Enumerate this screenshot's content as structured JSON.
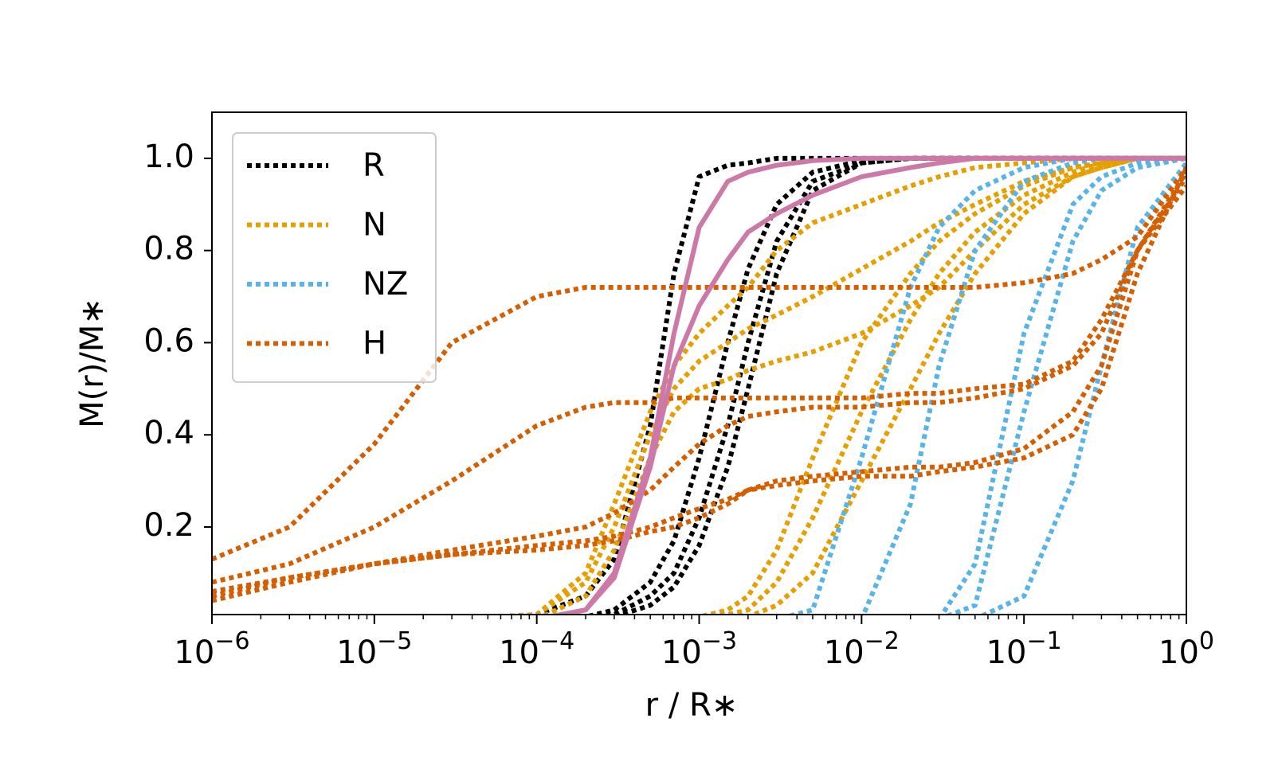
{
  "chart_data": {
    "type": "line",
    "xlabel": "r / R∗",
    "ylabel": "M(r)/M∗",
    "xscale": "log",
    "xlim": [
      1e-06,
      1
    ],
    "ylim": [
      0.01,
      1.1
    ],
    "xticks": [
      {
        "value": 1e-06,
        "label": "10−6"
      },
      {
        "value": 1e-05,
        "label": "10−5"
      },
      {
        "value": 0.0001,
        "label": "10−4"
      },
      {
        "value": 0.001,
        "label": "10−3"
      },
      {
        "value": 0.01,
        "label": "10−2"
      },
      {
        "value": 0.1,
        "label": "10−1"
      },
      {
        "value": 1,
        "label": "100"
      }
    ],
    "yticks": [
      0.2,
      0.4,
      0.6,
      0.8,
      {
        "value": 1,
        "label": "1.0"
      }
    ],
    "grid": false,
    "legend": "upper left",
    "x": [
      1e-06,
      3e-06,
      1e-05,
      3e-05,
      0.0001,
      0.0002,
      0.0003,
      0.0005,
      0.0007,
      0.001,
      0.0015,
      0.002,
      0.003,
      0.005,
      0.01,
      0.02,
      0.03,
      0.05,
      0.1,
      0.2,
      0.3,
      0.5,
      1
    ],
    "series": [
      {
        "name": "R",
        "color": "#000000",
        "style": "dotted",
        "lines": [
          [
            0,
            0,
            0,
            0,
            0.01,
            0.05,
            0.13,
            0.42,
            0.75,
            0.96,
            0.985,
            0.99,
            1,
            1,
            1,
            1,
            1,
            1,
            1,
            1,
            1,
            1,
            1
          ],
          [
            0,
            0,
            0,
            0,
            0,
            0.005,
            0.02,
            0.08,
            0.17,
            0.35,
            0.6,
            0.76,
            0.9,
            0.97,
            0.995,
            1,
            1,
            1,
            1,
            1,
            1,
            1,
            1
          ],
          [
            0,
            0,
            0,
            0,
            0,
            0,
            0.01,
            0.05,
            0.1,
            0.22,
            0.42,
            0.6,
            0.82,
            0.95,
            0.99,
            1,
            1,
            1,
            1,
            1,
            1,
            1,
            1
          ],
          [
            0,
            0,
            0,
            0,
            0,
            0,
            0.005,
            0.03,
            0.07,
            0.16,
            0.33,
            0.5,
            0.75,
            0.93,
            0.99,
            1,
            1,
            1,
            1,
            1,
            1,
            1,
            1
          ]
        ]
      },
      {
        "name": "N",
        "color": "#e69f00",
        "style": "dotted",
        "lines": [
          [
            0,
            0,
            0,
            0,
            0.01,
            0.1,
            0.25,
            0.45,
            0.55,
            0.62,
            0.68,
            0.72,
            0.8,
            0.86,
            0.9,
            0.94,
            0.96,
            0.98,
            0.99,
            1,
            1,
            1,
            1
          ],
          [
            0,
            0,
            0,
            0,
            0.01,
            0.08,
            0.2,
            0.4,
            0.5,
            0.56,
            0.6,
            0.63,
            0.66,
            0.7,
            0.76,
            0.82,
            0.86,
            0.9,
            0.95,
            0.98,
            0.99,
            1,
            1
          ],
          [
            0,
            0,
            0,
            0,
            0,
            0.05,
            0.15,
            0.35,
            0.45,
            0.5,
            0.52,
            0.54,
            0.56,
            0.58,
            0.62,
            0.68,
            0.72,
            0.8,
            0.9,
            0.96,
            0.98,
            1,
            1
          ],
          [
            0,
            0,
            0,
            0,
            0,
            0,
            0,
            0,
            0,
            0.005,
            0.02,
            0.05,
            0.15,
            0.35,
            0.6,
            0.75,
            0.82,
            0.88,
            0.94,
            0.98,
            0.99,
            1,
            1
          ],
          [
            0,
            0,
            0,
            0,
            0,
            0,
            0,
            0,
            0,
            0,
            0.01,
            0.02,
            0.08,
            0.22,
            0.45,
            0.65,
            0.75,
            0.84,
            0.92,
            0.97,
            0.99,
            1,
            1
          ],
          [
            0,
            0,
            0,
            0,
            0,
            0,
            0,
            0,
            0,
            0,
            0,
            0.005,
            0.03,
            0.1,
            0.3,
            0.5,
            0.62,
            0.75,
            0.88,
            0.96,
            0.98,
            1,
            1
          ]
        ]
      },
      {
        "name": "NZ",
        "color": "#56b4e9",
        "style": "dotted",
        "lines": [
          [
            0,
            0,
            0,
            0,
            0,
            0,
            0,
            0,
            0,
            0,
            0,
            0,
            0,
            0.02,
            0.35,
            0.72,
            0.85,
            0.93,
            0.98,
            1,
            1,
            1,
            1
          ],
          [
            0,
            0,
            0,
            0,
            0,
            0,
            0,
            0,
            0,
            0,
            0,
            0,
            0,
            0,
            0,
            0.25,
            0.55,
            0.8,
            0.95,
            0.99,
            1,
            1,
            1
          ],
          [
            0,
            0,
            0,
            0,
            0,
            0,
            0,
            0,
            0,
            0,
            0,
            0,
            0,
            0,
            0,
            0,
            0,
            0.12,
            0.62,
            0.9,
            0.96,
            0.99,
            1
          ],
          [
            0,
            0,
            0,
            0,
            0,
            0,
            0,
            0,
            0,
            0,
            0,
            0,
            0,
            0,
            0,
            0,
            0,
            0.03,
            0.45,
            0.82,
            0.93,
            0.98,
            1
          ],
          [
            0,
            0,
            0,
            0,
            0,
            0,
            0,
            0,
            0,
            0,
            0,
            0,
            0,
            0,
            0,
            0,
            0,
            0,
            0.05,
            0.3,
            0.55,
            0.85,
            0.99
          ]
        ]
      },
      {
        "name": "H",
        "color": "#d55e00",
        "style": "dotted",
        "lines": [
          [
            0.13,
            0.2,
            0.38,
            0.6,
            0.7,
            0.72,
            0.72,
            0.72,
            0.72,
            0.72,
            0.72,
            0.72,
            0.72,
            0.72,
            0.72,
            0.72,
            0.72,
            0.72,
            0.73,
            0.75,
            0.78,
            0.83,
            0.98
          ],
          [
            0.08,
            0.12,
            0.2,
            0.3,
            0.42,
            0.46,
            0.47,
            0.47,
            0.48,
            0.48,
            0.48,
            0.48,
            0.48,
            0.48,
            0.48,
            0.49,
            0.49,
            0.5,
            0.51,
            0.56,
            0.65,
            0.8,
            0.97
          ],
          [
            0.05,
            0.09,
            0.12,
            0.15,
            0.18,
            0.2,
            0.23,
            0.28,
            0.33,
            0.38,
            0.42,
            0.44,
            0.45,
            0.46,
            0.46,
            0.47,
            0.47,
            0.48,
            0.5,
            0.55,
            0.62,
            0.8,
            0.96
          ],
          [
            0.06,
            0.09,
            0.12,
            0.14,
            0.16,
            0.17,
            0.18,
            0.2,
            0.22,
            0.24,
            0.26,
            0.28,
            0.29,
            0.3,
            0.31,
            0.31,
            0.32,
            0.33,
            0.35,
            0.4,
            0.5,
            0.75,
            0.98
          ],
          [
            0.04,
            0.08,
            0.12,
            0.14,
            0.15,
            0.16,
            0.17,
            0.19,
            0.2,
            0.22,
            0.25,
            0.28,
            0.3,
            0.31,
            0.32,
            0.33,
            0.33,
            0.34,
            0.37,
            0.45,
            0.55,
            0.8,
            0.94
          ]
        ]
      },
      {
        "color": "#cc79a7",
        "style": "solid",
        "lines": [
          [
            0,
            0,
            0,
            0,
            0,
            0.02,
            0.1,
            0.35,
            0.62,
            0.85,
            0.95,
            0.97,
            0.985,
            0.995,
            1,
            1,
            1,
            1,
            1,
            1,
            1,
            1,
            1
          ],
          [
            0,
            0,
            0,
            0,
            0,
            0.02,
            0.09,
            0.33,
            0.55,
            0.68,
            0.78,
            0.84,
            0.88,
            0.92,
            0.96,
            0.98,
            0.99,
            1,
            1,
            1,
            1,
            1,
            1
          ]
        ]
      }
    ]
  }
}
